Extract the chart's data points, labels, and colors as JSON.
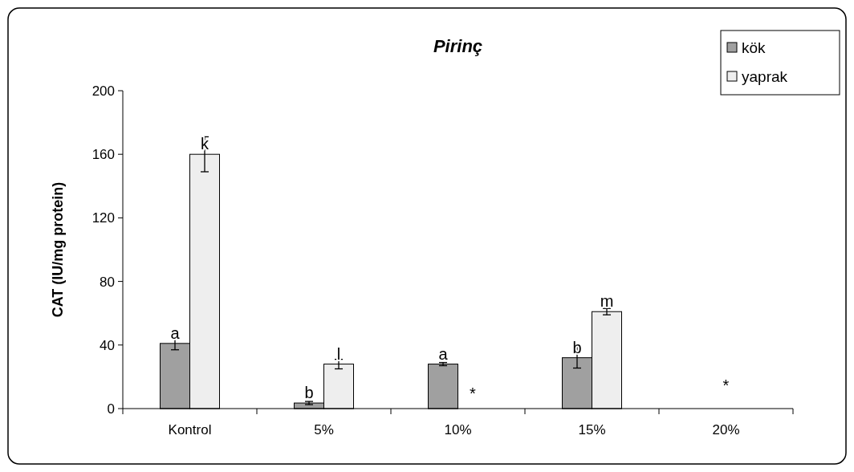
{
  "chart_data": {
    "type": "bar",
    "title": "Pirinç",
    "ylabel": "CAT (IU/mg protein)",
    "categories": [
      "Kontrol",
      "5%",
      "10%",
      "15%",
      "20%"
    ],
    "series": [
      {
        "name": "kök",
        "color": "#a0a0a0",
        "values": [
          41,
          3.5,
          28,
          32,
          null
        ],
        "errors": [
          4,
          1,
          1,
          6.5,
          null
        ]
      },
      {
        "name": "yaprak",
        "color": "#eeeeee",
        "values": [
          160,
          28,
          null,
          61,
          null
        ],
        "errors": [
          11,
          3,
          null,
          2,
          null
        ]
      }
    ],
    "ylim": [
      0,
      200
    ],
    "yticks": [
      0,
      40,
      80,
      120,
      160,
      200
    ],
    "grid": false,
    "legend": "top right",
    "annotations": [
      {
        "text": "a",
        "x": "Kontrol",
        "y": 41
      },
      {
        "text": "k",
        "x": "Kontrol",
        "y": 160
      },
      {
        "text": "b",
        "x": "5%",
        "y": 3.5
      },
      {
        "text": "l",
        "x": "5%",
        "y": 28
      },
      {
        "text": "a",
        "x": "10%",
        "y": 28
      },
      {
        "text": "*",
        "x": "10%",
        "y": 0
      },
      {
        "text": "b",
        "x": "15%",
        "y": 32
      },
      {
        "text": "m",
        "x": "15%",
        "y": 61
      },
      "*"
    ]
  }
}
